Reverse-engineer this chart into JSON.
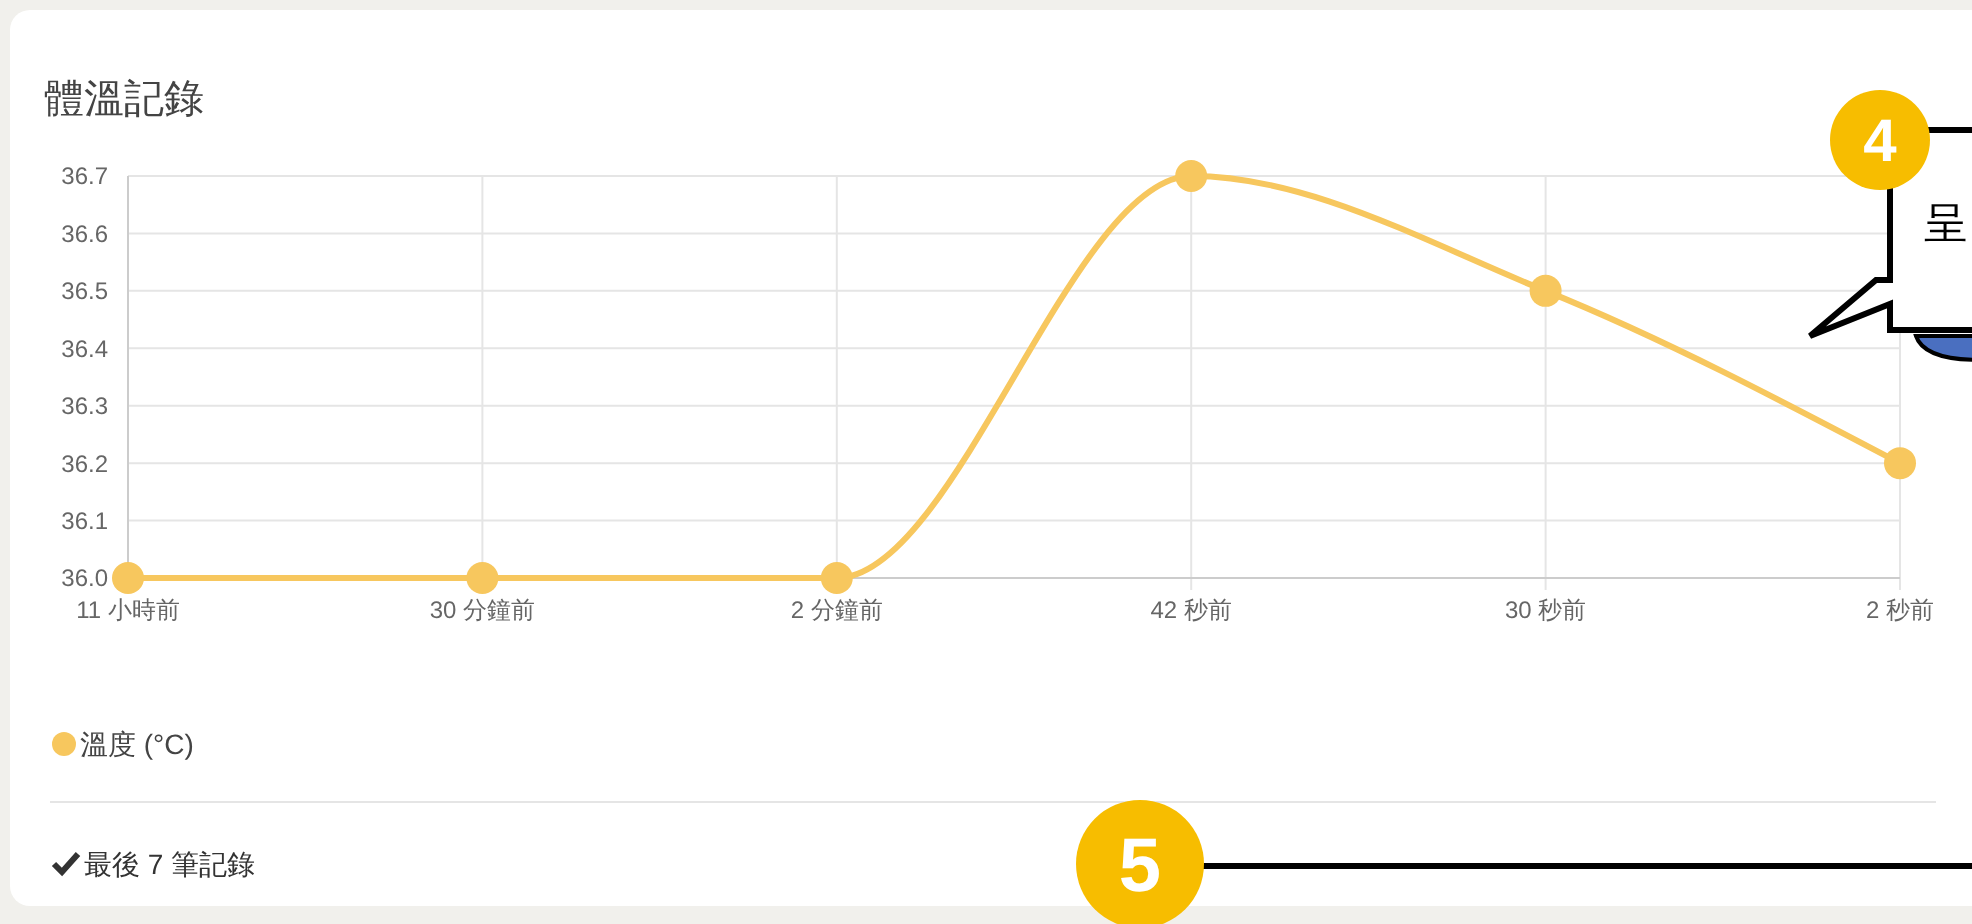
{
  "chart_data": {
    "type": "line",
    "title": "體溫記錄",
    "categories": [
      "11 小時前",
      "30 分鐘前",
      "2 分鐘前",
      "42 秒前",
      "30 秒前",
      "2 秒前"
    ],
    "series": [
      {
        "name": "溫度 (°C)",
        "color": "#f7c75e",
        "values": [
          36.0,
          36.0,
          36.0,
          36.7,
          36.5,
          36.2
        ]
      }
    ],
    "ylim": [
      36.0,
      36.7
    ],
    "yticks": [
      {
        "value": 36.0,
        "label": "36.0"
      },
      36.1,
      36.2,
      36.3,
      36.4,
      36.5,
      36.6,
      36.7
    ],
    "grid": true,
    "legend": "bottom left",
    "marker": "circle",
    "line_style": "solid",
    "annotations": [
      "最後 7 筆記錄",
      "4",
      "5",
      "呈"
    ]
  }
}
